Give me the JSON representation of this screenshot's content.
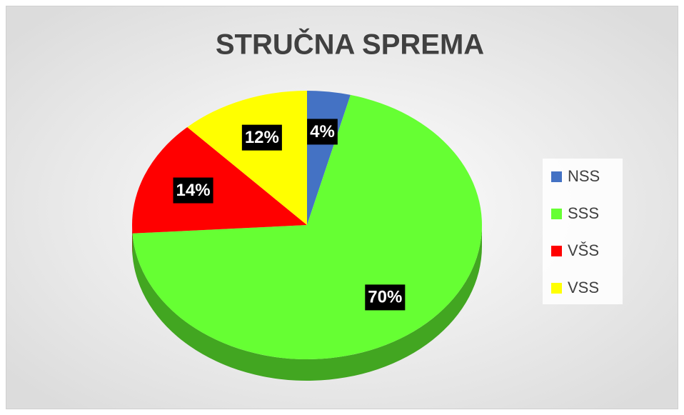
{
  "chart_data": {
    "type": "pie",
    "title": "STRUČNA SPREMA",
    "categories": [
      "NSS",
      "SSS",
      "VŠS",
      "VSS"
    ],
    "values": [
      4,
      70,
      14,
      12
    ],
    "value_labels": [
      "4%",
      "70%",
      "14%",
      "12%"
    ],
    "colors": [
      "#4472c4",
      "#66ff33",
      "#ff0000",
      "#ffff00"
    ],
    "legend": "right"
  }
}
